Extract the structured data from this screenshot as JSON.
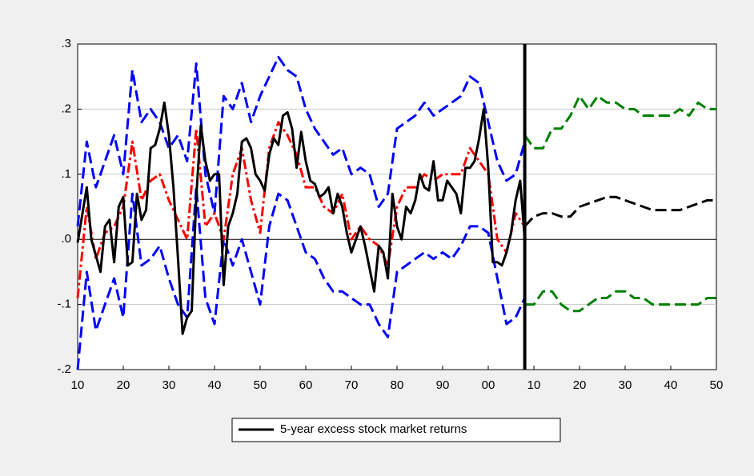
{
  "chart_data": {
    "type": "line",
    "xlim": [
      1910,
      2050
    ],
    "ylim": [
      -0.2,
      0.3
    ],
    "xticks": [
      {
        "value": 1910,
        "label": "10"
      },
      {
        "value": 1920,
        "label": "20"
      },
      {
        "value": 1930,
        "label": "30"
      },
      {
        "value": 1940,
        "label": "40"
      },
      {
        "value": 1950,
        "label": "50"
      },
      {
        "value": 1960,
        "label": "60"
      },
      {
        "value": 1970,
        "label": "70"
      },
      {
        "value": 1980,
        "label": "80"
      },
      {
        "value": 1990,
        "label": "90"
      },
      {
        "value": 2000,
        "label": "00"
      },
      {
        "value": 2010,
        "label": "10"
      },
      {
        "value": 2020,
        "label": "20"
      },
      {
        "value": 2030,
        "label": "30"
      },
      {
        "value": 2040,
        "label": "40"
      },
      {
        "value": 2050,
        "label": "50"
      }
    ],
    "yticks": [
      {
        "value": -0.2,
        "label": "-.2"
      },
      {
        "value": -0.1,
        "label": "-.1"
      },
      {
        "value": 0,
        "label": ".0"
      },
      {
        "value": 0.1,
        "label": ".1"
      },
      {
        "value": 0.2,
        "label": ".2"
      },
      {
        "value": 0.3,
        "label": ".3"
      }
    ],
    "grid": true,
    "vline": 2008,
    "series": [
      {
        "color": "#0000ff",
        "style": "dash",
        "x": [
          1910,
          1912,
          1914,
          1916,
          1918,
          1920,
          1922,
          1924,
          1926,
          1928,
          1930,
          1932,
          1934,
          1936,
          1938,
          1940,
          1942,
          1944,
          1946,
          1948,
          1950,
          1952,
          1954,
          1956,
          1958,
          1960,
          1962,
          1964,
          1966,
          1968,
          1970,
          1972,
          1974,
          1976,
          1978,
          1980,
          1982,
          1984,
          1986,
          1988,
          1990,
          1992,
          1994,
          1996,
          1998,
          2000,
          2002,
          2004,
          2006,
          2008
        ],
        "values": [
          0.02,
          0.15,
          0.08,
          0.12,
          0.16,
          0.1,
          0.26,
          0.18,
          0.2,
          0.18,
          0.14,
          0.16,
          0.12,
          0.27,
          0.1,
          0.04,
          0.22,
          0.2,
          0.24,
          0.18,
          0.22,
          0.25,
          0.28,
          0.26,
          0.25,
          0.2,
          0.17,
          0.15,
          0.13,
          0.14,
          0.1,
          0.11,
          0.1,
          0.05,
          0.07,
          0.17,
          0.18,
          0.19,
          0.21,
          0.19,
          0.2,
          0.21,
          0.22,
          0.25,
          0.24,
          0.18,
          0.12,
          0.09,
          0.1,
          0.15
        ]
      },
      {
        "color": "#0000ff",
        "style": "dash",
        "x": [
          1910,
          1912,
          1914,
          1916,
          1918,
          1920,
          1922,
          1924,
          1926,
          1928,
          1930,
          1932,
          1934,
          1936,
          1938,
          1940,
          1942,
          1944,
          1946,
          1948,
          1950,
          1952,
          1954,
          1956,
          1958,
          1960,
          1962,
          1964,
          1966,
          1968,
          1970,
          1972,
          1974,
          1976,
          1978,
          1980,
          1982,
          1984,
          1986,
          1988,
          1990,
          1992,
          1994,
          1996,
          1998,
          2000,
          2002,
          2004,
          2006,
          2008
        ],
        "values": [
          -0.2,
          -0.05,
          -0.14,
          -0.1,
          -0.06,
          -0.12,
          0.07,
          -0.04,
          -0.03,
          -0.01,
          -0.06,
          -0.1,
          -0.12,
          0.08,
          -0.09,
          -0.13,
          0.0,
          -0.04,
          0.0,
          -0.05,
          -0.1,
          0.02,
          0.07,
          0.06,
          0.02,
          -0.02,
          -0.03,
          -0.06,
          -0.08,
          -0.08,
          -0.09,
          -0.1,
          -0.1,
          -0.13,
          -0.15,
          -0.05,
          -0.04,
          -0.03,
          -0.02,
          -0.03,
          -0.02,
          -0.03,
          -0.01,
          0.02,
          0.02,
          0.01,
          -0.06,
          -0.13,
          -0.12,
          -0.09
        ]
      },
      {
        "color": "#ff0000",
        "style": "dashdot",
        "x": [
          1910,
          1912,
          1914,
          1916,
          1918,
          1920,
          1922,
          1924,
          1926,
          1928,
          1930,
          1932,
          1934,
          1936,
          1938,
          1940,
          1942,
          1944,
          1946,
          1948,
          1950,
          1952,
          1954,
          1956,
          1958,
          1960,
          1962,
          1964,
          1966,
          1968,
          1970,
          1972,
          1974,
          1976,
          1978,
          1980,
          1982,
          1984,
          1986,
          1988,
          1990,
          1992,
          1994,
          1996,
          1998,
          2000,
          2002,
          2004,
          2006,
          2008
        ],
        "values": [
          -0.09,
          0.05,
          -0.03,
          0.01,
          0.02,
          0.05,
          0.15,
          0.06,
          0.09,
          0.1,
          0.06,
          0.03,
          0.0,
          0.17,
          0.02,
          0.04,
          0.0,
          0.1,
          0.14,
          0.06,
          0.01,
          0.14,
          0.18,
          0.16,
          0.13,
          0.08,
          0.08,
          0.05,
          0.04,
          0.07,
          0.0,
          0.02,
          0.0,
          -0.01,
          -0.04,
          0.05,
          0.08,
          0.08,
          0.1,
          0.09,
          0.1,
          0.1,
          0.1,
          0.14,
          0.12,
          0.1,
          0.0,
          -0.02,
          0.04,
          0.02
        ]
      },
      {
        "name": "5-year excess stock market returns",
        "color": "#000000",
        "style": "solid",
        "x": [
          1910,
          1912,
          1913,
          1915,
          1916,
          1917,
          1918,
          1919,
          1920,
          1921,
          1922,
          1923,
          1924,
          1925,
          1926,
          1927,
          1928,
          1929,
          1930,
          1931,
          1932,
          1933,
          1934,
          1935,
          1936,
          1937,
          1938,
          1939,
          1940,
          1941,
          1942,
          1943,
          1944,
          1945,
          1946,
          1947,
          1948,
          1949,
          1950,
          1951,
          1952,
          1953,
          1954,
          1955,
          1956,
          1957,
          1958,
          1959,
          1960,
          1961,
          1962,
          1963,
          1964,
          1965,
          1966,
          1967,
          1968,
          1969,
          1970,
          1971,
          1972,
          1973,
          1974,
          1975,
          1976,
          1977,
          1978,
          1979,
          1980,
          1981,
          1982,
          1983,
          1984,
          1985,
          1986,
          1987,
          1988,
          1989,
          1990,
          1991,
          1992,
          1993,
          1994,
          1995,
          1996,
          1997,
          1998,
          1999,
          2000,
          2001,
          2002,
          2003,
          2004,
          2005,
          2006,
          2007,
          2008
        ],
        "values": [
          -0.005,
          0.08,
          0.0,
          -0.05,
          0.02,
          0.03,
          -0.035,
          0.05,
          0.065,
          -0.04,
          -0.035,
          0.07,
          0.03,
          0.045,
          0.14,
          0.145,
          0.17,
          0.21,
          0.16,
          0.08,
          -0.03,
          -0.145,
          -0.12,
          -0.11,
          0.065,
          0.175,
          0.12,
          0.09,
          0.1,
          0.1,
          -0.07,
          0.02,
          0.04,
          0.07,
          0.15,
          0.155,
          0.14,
          0.1,
          0.09,
          0.075,
          0.13,
          0.155,
          0.145,
          0.19,
          0.195,
          0.17,
          0.11,
          0.165,
          0.12,
          0.09,
          0.085,
          0.065,
          0.07,
          0.08,
          0.04,
          0.07,
          0.05,
          0.01,
          -0.02,
          0.0,
          0.02,
          -0.01,
          -0.045,
          -0.08,
          -0.01,
          -0.02,
          -0.06,
          0.07,
          0.02,
          0.0,
          0.05,
          0.04,
          0.06,
          0.1,
          0.08,
          0.075,
          0.12,
          0.06,
          0.06,
          0.09,
          0.08,
          0.07,
          0.04,
          0.11,
          0.11,
          0.12,
          0.155,
          0.2,
          0.11,
          -0.035,
          -0.035,
          -0.04,
          -0.02,
          0.01,
          0.06,
          0.09,
          0.0
        ]
      },
      {
        "color": "#008000",
        "style": "dash",
        "x": [
          2008,
          2010,
          2012,
          2014,
          2016,
          2018,
          2020,
          2022,
          2024,
          2026,
          2028,
          2030,
          2032,
          2034,
          2036,
          2038,
          2040,
          2042,
          2044,
          2046,
          2048,
          2050
        ],
        "values": [
          0.16,
          0.14,
          0.14,
          0.17,
          0.17,
          0.19,
          0.22,
          0.2,
          0.22,
          0.21,
          0.21,
          0.2,
          0.2,
          0.19,
          0.19,
          0.19,
          0.19,
          0.2,
          0.19,
          0.21,
          0.2,
          0.2
        ]
      },
      {
        "color": "#000000",
        "style": "dash",
        "x": [
          2008,
          2010,
          2012,
          2014,
          2016,
          2018,
          2020,
          2022,
          2024,
          2026,
          2028,
          2030,
          2032,
          2034,
          2036,
          2038,
          2040,
          2042,
          2044,
          2046,
          2048,
          2050
        ],
        "values": [
          0.02,
          0.035,
          0.04,
          0.04,
          0.035,
          0.035,
          0.05,
          0.055,
          0.06,
          0.065,
          0.065,
          0.06,
          0.055,
          0.05,
          0.045,
          0.045,
          0.045,
          0.045,
          0.05,
          0.055,
          0.06,
          0.06
        ]
      },
      {
        "color": "#008000",
        "style": "dash",
        "x": [
          2008,
          2010,
          2012,
          2014,
          2016,
          2018,
          2020,
          2022,
          2024,
          2026,
          2028,
          2030,
          2032,
          2034,
          2036,
          2038,
          2040,
          2042,
          2044,
          2046,
          2048,
          2050
        ],
        "values": [
          -0.1,
          -0.1,
          -0.08,
          -0.08,
          -0.1,
          -0.11,
          -0.11,
          -0.1,
          -0.09,
          -0.09,
          -0.08,
          -0.08,
          -0.09,
          -0.09,
          -0.1,
          -0.1,
          -0.1,
          -0.1,
          -0.1,
          -0.1,
          -0.09,
          -0.09
        ]
      }
    ]
  }
}
